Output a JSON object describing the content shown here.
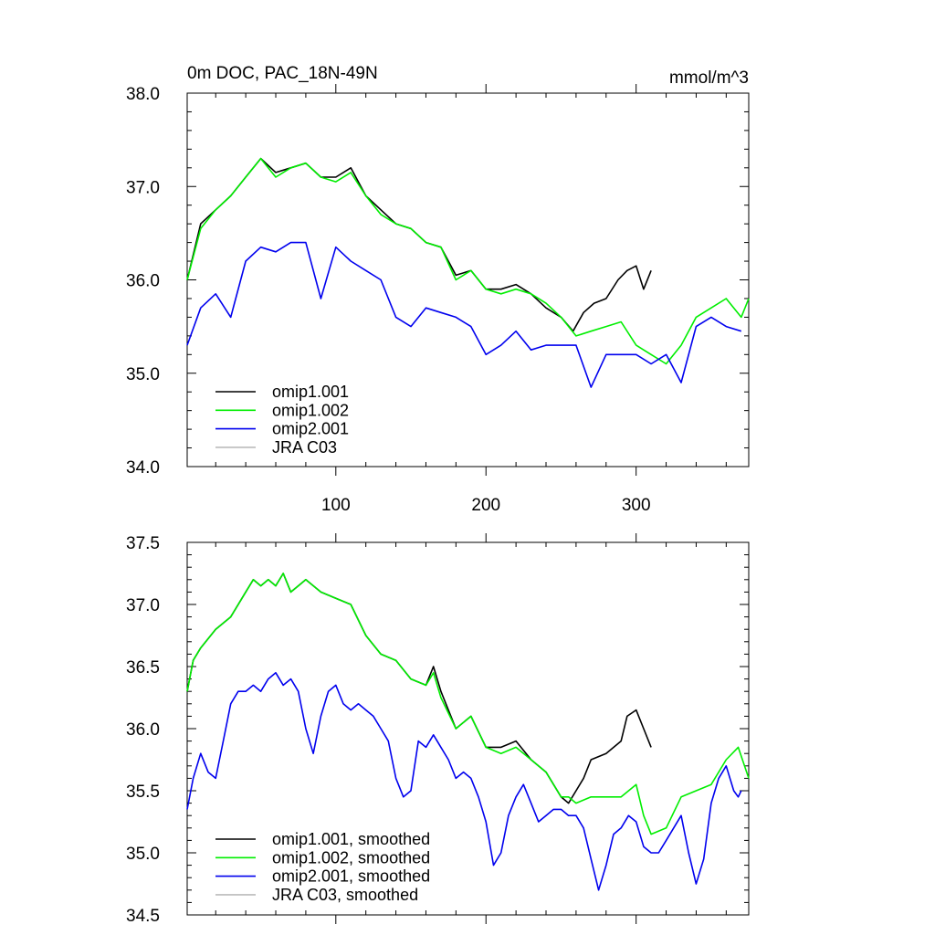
{
  "chart_data": [
    {
      "type": "line",
      "title": "0m DOC, PAC_18N-49N",
      "units": "mmol/m^3",
      "xlim": [
        1,
        375
      ],
      "ylim": [
        34.0,
        38.0
      ],
      "xticks": [
        100,
        200,
        300
      ],
      "yticks": [
        34.0,
        35.0,
        36.0,
        37.0,
        38.0
      ],
      "ytick_labels": [
        "34.0",
        "35.0",
        "36.0",
        "37.0",
        "38.0"
      ],
      "legend_position": "bottom-left",
      "series": [
        {
          "name": "omip1.001",
          "color": "#000000",
          "x": [
            1,
            10,
            20,
            30,
            40,
            50,
            60,
            70,
            80,
            90,
            100,
            110,
            120,
            130,
            140,
            150,
            160,
            170,
            180,
            190,
            200,
            210,
            220,
            230,
            240,
            250,
            258,
            265,
            272,
            280,
            288,
            294,
            300,
            305,
            310
          ],
          "y": [
            36.0,
            36.6,
            36.75,
            36.9,
            37.1,
            37.3,
            37.15,
            37.2,
            37.25,
            37.1,
            37.1,
            37.2,
            36.9,
            36.75,
            36.6,
            36.55,
            36.4,
            36.35,
            36.05,
            36.1,
            35.9,
            35.9,
            35.95,
            35.85,
            35.7,
            35.6,
            35.45,
            35.65,
            35.75,
            35.8,
            36.0,
            36.1,
            36.15,
            35.9,
            36.1
          ]
        },
        {
          "name": "omip1.002",
          "color": "#00ee00",
          "x": [
            1,
            10,
            20,
            30,
            40,
            50,
            60,
            70,
            80,
            90,
            100,
            110,
            120,
            130,
            140,
            150,
            160,
            170,
            180,
            190,
            200,
            210,
            220,
            230,
            240,
            250,
            260,
            270,
            280,
            290,
            300,
            310,
            320,
            330,
            340,
            350,
            360,
            370,
            375
          ],
          "y": [
            36.0,
            36.55,
            36.75,
            36.9,
            37.1,
            37.3,
            37.1,
            37.2,
            37.25,
            37.1,
            37.05,
            37.15,
            36.9,
            36.7,
            36.6,
            36.55,
            36.4,
            36.35,
            36.0,
            36.1,
            35.9,
            35.85,
            35.9,
            35.85,
            35.75,
            35.6,
            35.4,
            35.45,
            35.5,
            35.55,
            35.3,
            35.2,
            35.1,
            35.3,
            35.6,
            35.7,
            35.8,
            35.6,
            35.8
          ]
        },
        {
          "name": "omip2.001",
          "color": "#0000ee",
          "x": [
            1,
            10,
            20,
            30,
            40,
            50,
            60,
            70,
            80,
            90,
            100,
            110,
            120,
            130,
            140,
            150,
            160,
            170,
            180,
            190,
            200,
            210,
            220,
            230,
            240,
            250,
            260,
            270,
            280,
            290,
            300,
            310,
            320,
            330,
            340,
            350,
            360,
            370
          ],
          "y": [
            35.3,
            35.7,
            35.85,
            35.6,
            36.2,
            36.35,
            36.3,
            36.4,
            36.4,
            35.8,
            36.35,
            36.2,
            36.1,
            36.0,
            35.6,
            35.5,
            35.7,
            35.65,
            35.6,
            35.5,
            35.2,
            35.3,
            35.45,
            35.25,
            35.3,
            35.3,
            35.3,
            34.85,
            35.2,
            35.2,
            35.2,
            35.1,
            35.2,
            34.9,
            35.5,
            35.6,
            35.5,
            35.45
          ]
        }
      ],
      "legend": [
        "omip1.001",
        "omip1.002",
        "omip2.001",
        "JRA C03"
      ],
      "legend_colors": [
        "#000000",
        "#00ee00",
        "#0000ee",
        "#bbbbbb"
      ]
    },
    {
      "type": "line",
      "xlim": [
        1,
        375
      ],
      "ylim": [
        34.5,
        37.5
      ],
      "xticks": [
        100,
        200,
        300
      ],
      "yticks": [
        34.5,
        35.0,
        35.5,
        36.0,
        36.5,
        37.0,
        37.5
      ],
      "ytick_labels": [
        "34.5",
        "35.0",
        "35.5",
        "36.0",
        "36.5",
        "37.0",
        "37.5"
      ],
      "legend_position": "bottom-left",
      "series": [
        {
          "name": "omip1.001, smoothed",
          "color": "#000000",
          "x": [
            1,
            5,
            10,
            20,
            30,
            40,
            45,
            50,
            55,
            60,
            65,
            70,
            75,
            80,
            90,
            100,
            110,
            120,
            130,
            140,
            150,
            160,
            165,
            170,
            180,
            190,
            200,
            210,
            220,
            230,
            240,
            250,
            255,
            260,
            265,
            270,
            280,
            290,
            294,
            300,
            305,
            310
          ],
          "y": [
            36.3,
            36.55,
            36.65,
            36.8,
            36.9,
            37.1,
            37.2,
            37.15,
            37.2,
            37.15,
            37.25,
            37.1,
            37.15,
            37.2,
            37.1,
            37.05,
            37.0,
            36.75,
            36.6,
            36.55,
            36.4,
            36.35,
            36.5,
            36.3,
            36.0,
            36.1,
            35.85,
            35.85,
            35.9,
            35.75,
            35.65,
            35.45,
            35.4,
            35.5,
            35.6,
            35.75,
            35.8,
            35.9,
            36.1,
            36.15,
            36.0,
            35.85
          ]
        },
        {
          "name": "omip1.002, smoothed",
          "color": "#00ee00",
          "x": [
            1,
            5,
            10,
            20,
            30,
            40,
            45,
            50,
            55,
            60,
            65,
            70,
            75,
            80,
            90,
            100,
            110,
            120,
            130,
            140,
            150,
            160,
            165,
            170,
            180,
            190,
            200,
            210,
            220,
            230,
            240,
            250,
            255,
            260,
            270,
            280,
            290,
            300,
            305,
            310,
            320,
            330,
            340,
            350,
            360,
            368,
            375
          ],
          "y": [
            36.3,
            36.55,
            36.65,
            36.8,
            36.9,
            37.1,
            37.2,
            37.15,
            37.2,
            37.15,
            37.25,
            37.1,
            37.15,
            37.2,
            37.1,
            37.05,
            37.0,
            36.75,
            36.6,
            36.55,
            36.4,
            36.35,
            36.45,
            36.25,
            36.0,
            36.1,
            35.85,
            35.8,
            35.85,
            35.75,
            35.65,
            35.45,
            35.45,
            35.4,
            35.45,
            35.45,
            35.45,
            35.55,
            35.3,
            35.15,
            35.2,
            35.45,
            35.5,
            35.55,
            35.75,
            35.85,
            35.6
          ]
        },
        {
          "name": "omip2.001, smoothed",
          "color": "#0000ee",
          "x": [
            1,
            5,
            10,
            15,
            20,
            25,
            30,
            35,
            40,
            45,
            50,
            55,
            60,
            65,
            70,
            75,
            80,
            85,
            90,
            95,
            100,
            105,
            110,
            115,
            120,
            125,
            130,
            135,
            140,
            145,
            150,
            155,
            160,
            165,
            170,
            175,
            180,
            185,
            190,
            195,
            200,
            205,
            210,
            215,
            220,
            225,
            230,
            235,
            240,
            245,
            250,
            255,
            260,
            265,
            270,
            275,
            280,
            285,
            290,
            295,
            300,
            305,
            310,
            315,
            320,
            325,
            330,
            335,
            340,
            345,
            350,
            355,
            360,
            365,
            368,
            370
          ],
          "y": [
            35.35,
            35.6,
            35.8,
            35.65,
            35.6,
            35.9,
            36.2,
            36.3,
            36.3,
            36.35,
            36.3,
            36.4,
            36.45,
            36.35,
            36.4,
            36.3,
            36.0,
            35.8,
            36.1,
            36.3,
            36.35,
            36.2,
            36.15,
            36.2,
            36.15,
            36.1,
            36.0,
            35.9,
            35.6,
            35.45,
            35.5,
            35.9,
            35.85,
            35.95,
            35.85,
            35.75,
            35.6,
            35.65,
            35.6,
            35.45,
            35.25,
            34.9,
            35.0,
            35.3,
            35.45,
            35.55,
            35.4,
            35.25,
            35.3,
            35.35,
            35.35,
            35.3,
            35.3,
            35.2,
            34.95,
            34.7,
            34.9,
            35.15,
            35.2,
            35.3,
            35.25,
            35.05,
            35.0,
            35.0,
            35.1,
            35.2,
            35.3,
            35.0,
            34.75,
            34.95,
            35.4,
            35.6,
            35.7,
            35.5,
            35.45,
            35.5
          ]
        }
      ],
      "legend": [
        "omip1.001, smoothed",
        "omip1.002, smoothed",
        "omip2.001, smoothed",
        "JRA C03, smoothed"
      ],
      "legend_colors": [
        "#000000",
        "#00ee00",
        "#0000ee",
        "#bbbbbb"
      ]
    }
  ]
}
